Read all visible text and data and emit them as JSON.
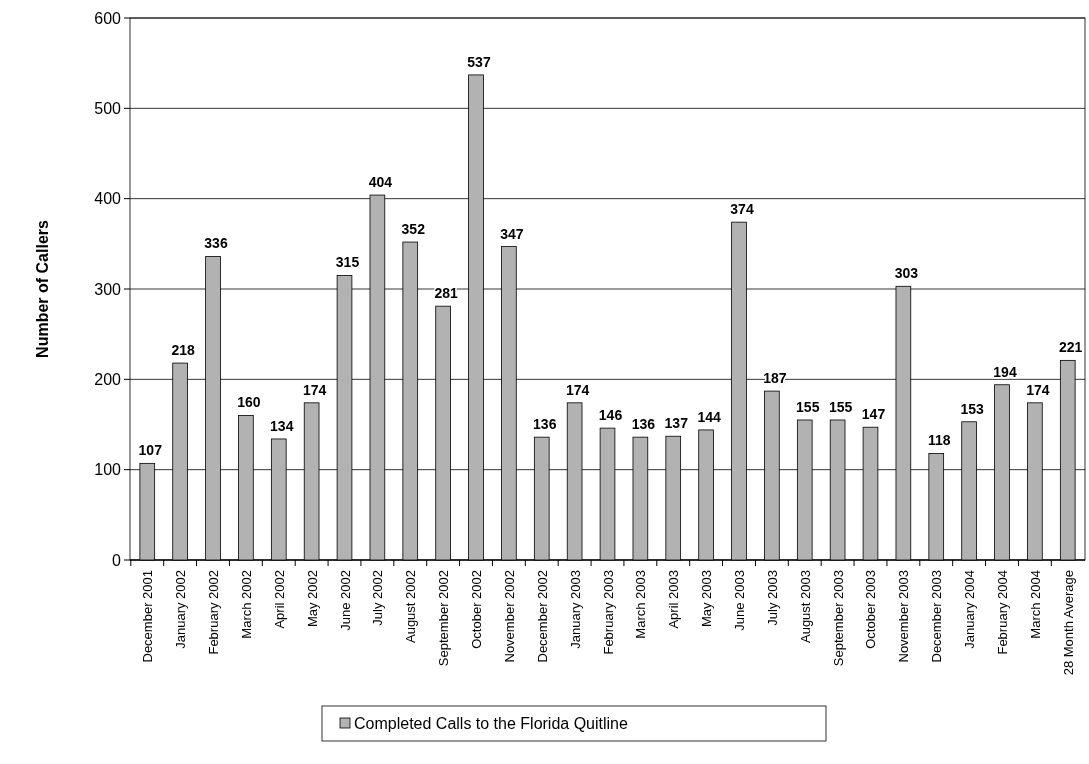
{
  "chart_data": {
    "type": "bar",
    "ylabel": "Number of Callers",
    "categories": [
      "December 2001",
      "January 2002",
      "February 2002",
      "March 2002",
      "April 2002",
      "May 2002",
      "June 2002",
      "July 2002",
      "August 2002",
      "September 2002",
      "October 2002",
      "November 2002",
      "December 2002",
      "January 2003",
      "February 2003",
      "March 2003",
      "April 2003",
      "May 2003",
      "June 2003",
      "July 2003",
      "August 2003",
      "September 2003",
      "October 2003",
      "November 2003",
      "December 2003",
      "January 2004",
      "February 2004",
      "March 2004",
      "28 Month Average"
    ],
    "series": [
      {
        "name": "Completed Calls to the Florida Quitline",
        "color": "#b2b2b2",
        "values": [
          107,
          218,
          336,
          160,
          134,
          174,
          315,
          404,
          352,
          281,
          537,
          347,
          136,
          174,
          146,
          136,
          137,
          144,
          374,
          187,
          155,
          155,
          147,
          303,
          118,
          153,
          194,
          174,
          221
        ]
      }
    ],
    "ylim": [
      0,
      600
    ],
    "yticks": [
      0,
      100,
      200,
      300,
      400,
      500,
      600
    ],
    "grid": "y",
    "legend": "bottom",
    "data_labels": true
  }
}
